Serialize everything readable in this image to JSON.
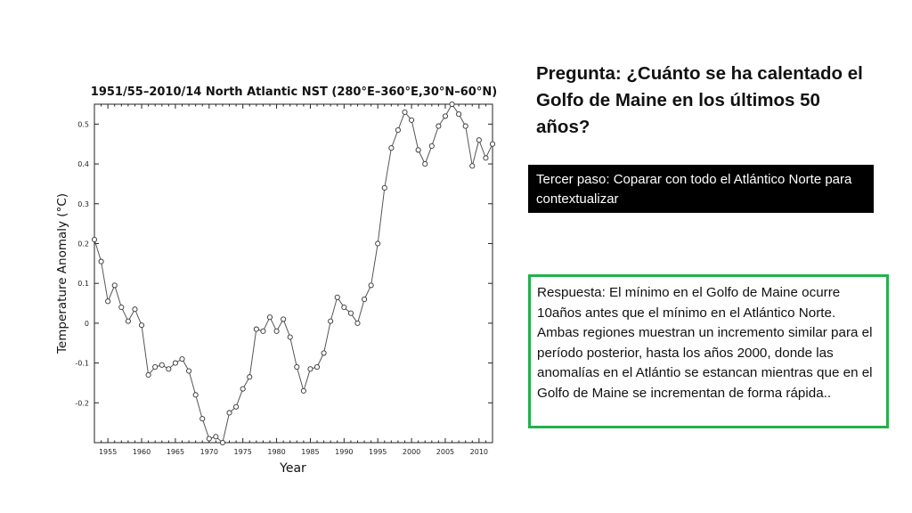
{
  "question": "Pregunta: ¿Cuánto se ha calentado el Golfo de Maine en los últimos 50 años?",
  "step": "Tercer paso: Coparar con todo el Atlántico Norte para contextualizar",
  "answer": "Respuesta: El mínimo en el Golfo de Maine ocurre 10años antes que el mínimo en el Atlántico Norte. Ambas regiones muestran un incremento similar para el período posterior, hasta los años 2000, donde las anomalías en el Atlántio se estancan mientras que en el Golfo de Maine se incrementan de forma rápida..",
  "colors": {
    "answer_border": "#22b14c",
    "step_bg": "#000000",
    "line": "#555555"
  },
  "chart_data": {
    "type": "line",
    "title": "1951/55–2010/14 North Atlantic NST (280°E–360°E,30°N–60°N)",
    "xlabel": "Year",
    "ylabel": "Temperature Anomaly (°C)",
    "xlim": [
      1953,
      2012
    ],
    "ylim": [
      -0.3,
      0.55
    ],
    "xticks": [
      1955,
      1960,
      1965,
      1970,
      1975,
      1980,
      1985,
      1990,
      1995,
      2000,
      2005,
      2010
    ],
    "yticks": [
      -0.2,
      -0.1,
      0,
      0.1,
      0.2,
      0.3,
      0.4,
      0.5
    ],
    "ytick_labels": [
      "-0.2",
      "-0.1",
      "0",
      "0.1",
      "0.2",
      "0.3",
      "0.4",
      "0.5"
    ],
    "grid": false,
    "series": [
      {
        "x": [
          1953,
          1954,
          1955,
          1956,
          1957,
          1958,
          1959,
          1960,
          1961,
          1962,
          1963,
          1964,
          1965,
          1966,
          1967,
          1968,
          1969,
          1970,
          1971,
          1972,
          1973,
          1974,
          1975,
          1976,
          1977,
          1978,
          1979,
          1980,
          1981,
          1982,
          1983,
          1984,
          1985,
          1986,
          1987,
          1988,
          1989,
          1990,
          1991,
          1992,
          1993,
          1994,
          1995,
          1996,
          1997,
          1998,
          1999,
          2000,
          2001,
          2002,
          2003,
          2004,
          2005,
          2006,
          2007,
          2008,
          2009,
          2010,
          2011,
          2012
        ],
        "y": [
          0.21,
          0.155,
          0.055,
          0.095,
          0.04,
          0.005,
          0.035,
          -0.005,
          -0.13,
          -0.11,
          -0.105,
          -0.115,
          -0.1,
          -0.09,
          -0.12,
          -0.18,
          -0.24,
          -0.29,
          -0.285,
          -0.3,
          -0.225,
          -0.21,
          -0.165,
          -0.135,
          -0.015,
          -0.02,
          0.015,
          -0.02,
          0.01,
          -0.035,
          -0.11,
          -0.17,
          -0.115,
          -0.11,
          -0.075,
          0.005,
          0.065,
          0.04,
          0.025,
          0,
          0.06,
          0.095,
          0.2,
          0.34,
          0.44,
          0.485,
          0.53,
          0.51,
          0.435,
          0.4,
          0.445,
          0.495,
          0.52,
          0.55,
          0.525,
          0.495,
          0.395,
          0.46,
          0.415,
          0.45
        ]
      }
    ]
  }
}
